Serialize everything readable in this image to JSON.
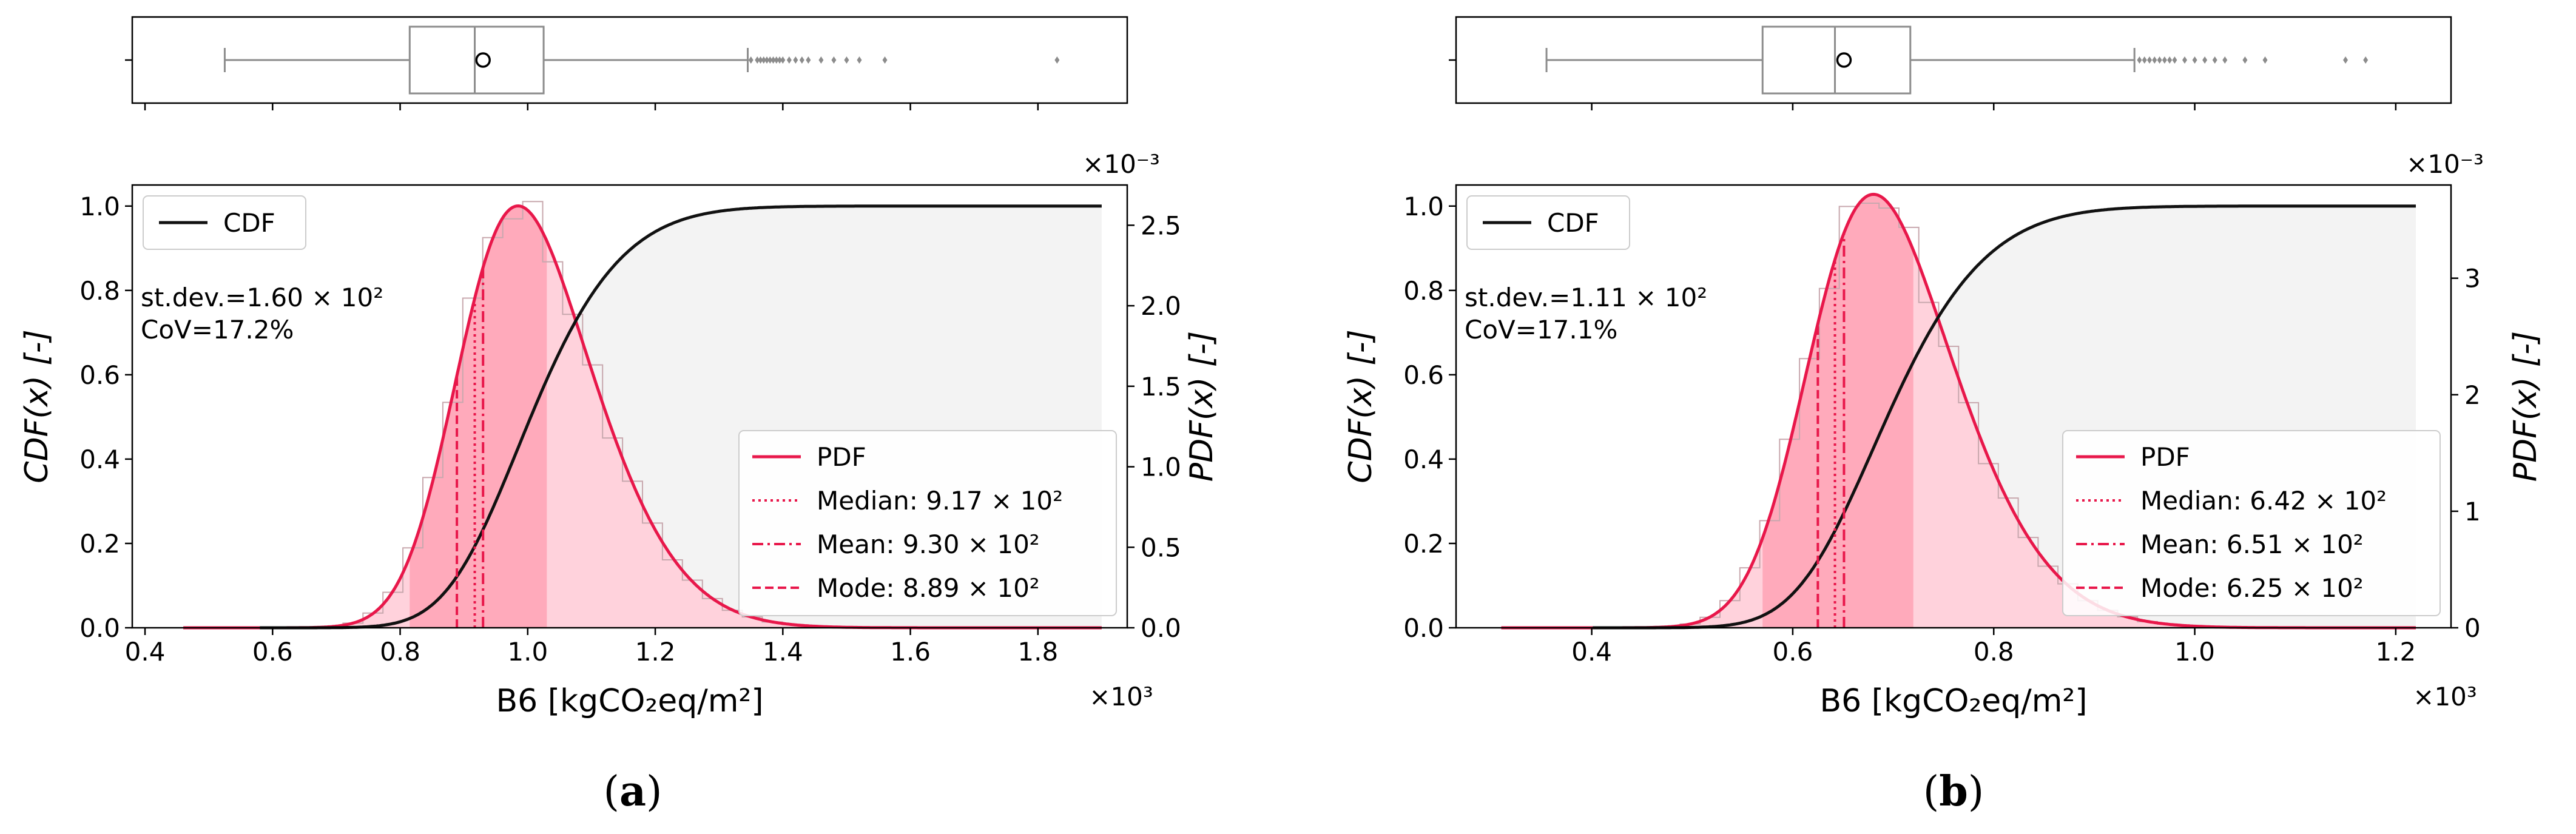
{
  "figure": {
    "panels": [
      {
        "caption_letter": "a",
        "chart_data": {
          "type": "histogram-kde-cdf-boxplot",
          "xlabel": "B6 [kgCO₂eq/m²]",
          "x_multiplier": "×10³",
          "x_range": [
            0.38,
            1.94
          ],
          "x_ticks": [
            0.4,
            0.6,
            0.8,
            1.0,
            1.2,
            1.4,
            1.6,
            1.8
          ],
          "x_tick_labels": [
            "0.4",
            "0.6",
            "0.8",
            "1.0",
            "1.2",
            "1.4",
            "1.6",
            "1.8"
          ],
          "cdf_axis": {
            "label": "CDF(x) [-]",
            "range": [
              0,
              1.05
            ],
            "ticks": [
              0.0,
              0.2,
              0.4,
              0.6,
              0.8,
              1.0
            ],
            "tick_labels": [
              "0.0",
              "0.2",
              "0.4",
              "0.6",
              "0.8",
              "1.0"
            ]
          },
          "pdf_axis": {
            "label": "PDF(x) [-]",
            "multiplier": "×10⁻³",
            "range": [
              0,
              2.75
            ],
            "ticks": [
              0.0,
              0.5,
              1.0,
              1.5,
              2.0,
              2.5
            ],
            "tick_labels": [
              "0.0",
              "0.5",
              "1.0",
              "1.5",
              "2.0",
              "2.5"
            ]
          },
          "stats": {
            "line1": "st.dev.=1.60 × 10²",
            "line2": "CoV=17.2%"
          },
          "distribution": {
            "mu": 0.9,
            "sigma": 0.16,
            "skew": 2.0,
            "pdf_peak": 2.62,
            "x_min": 0.46,
            "x_max": 1.9
          },
          "cdf_curve": {
            "x_start": 0.58,
            "x_end": 1.9
          },
          "iqr": [
            0.815,
            1.03
          ],
          "median": 0.917,
          "mean": 0.93,
          "mode": 0.889,
          "boxplot": {
            "whisker_low": 0.525,
            "q1": 0.815,
            "median": 0.917,
            "q3": 1.025,
            "whisker_high": 1.345,
            "mean": 0.93,
            "outliers": [
              1.35,
              1.36,
              1.365,
              1.37,
              1.375,
              1.38,
              1.385,
              1.39,
              1.395,
              1.4,
              1.41,
              1.42,
              1.43,
              1.44,
              1.46,
              1.48,
              1.5,
              1.52,
              1.56,
              1.83
            ]
          },
          "legend": {
            "cdf": "CDF",
            "pdf": "PDF",
            "median": "Median: 9.17 × 10²",
            "mean": "Mean: 9.30 × 10²",
            "mode": "Mode: 8.89 × 10²"
          }
        }
      },
      {
        "caption_letter": "b",
        "chart_data": {
          "type": "histogram-kde-cdf-boxplot",
          "xlabel": "B6 [kgCO₂eq/m²]",
          "x_multiplier": "×10³",
          "x_range": [
            0.265,
            1.255
          ],
          "x_ticks": [
            0.4,
            0.6,
            0.8,
            1.0,
            1.2
          ],
          "x_tick_labels": [
            "0.4",
            "0.6",
            "0.8",
            "1.0",
            "1.2"
          ],
          "cdf_axis": {
            "label": "CDF(x) [-]",
            "range": [
              0,
              1.05
            ],
            "ticks": [
              0.0,
              0.2,
              0.4,
              0.6,
              0.8,
              1.0
            ],
            "tick_labels": [
              "0.0",
              "0.2",
              "0.4",
              "0.6",
              "0.8",
              "1.0"
            ]
          },
          "pdf_axis": {
            "label": "PDF(x) [-]",
            "multiplier": "×10⁻³",
            "range": [
              0,
              3.8
            ],
            "ticks": [
              0,
              1,
              2,
              3
            ],
            "tick_labels": [
              "0",
              "1",
              "2",
              "3"
            ]
          },
          "stats": {
            "line1": "st.dev.=1.11 × 10²",
            "line2": "CoV=17.1%"
          },
          "distribution": {
            "mu": 0.622,
            "sigma": 0.11,
            "skew": 2.0,
            "pdf_peak": 3.72,
            "x_min": 0.31,
            "x_max": 1.22
          },
          "cdf_curve": {
            "x_start": 0.4,
            "x_end": 1.22
          },
          "iqr": [
            0.57,
            0.72
          ],
          "median": 0.642,
          "mean": 0.651,
          "mode": 0.625,
          "boxplot": {
            "whisker_low": 0.355,
            "q1": 0.57,
            "median": 0.642,
            "q3": 0.717,
            "whisker_high": 0.94,
            "mean": 0.651,
            "outliers": [
              0.945,
              0.95,
              0.955,
              0.96,
              0.965,
              0.97,
              0.975,
              0.98,
              0.99,
              1.0,
              1.01,
              1.02,
              1.03,
              1.05,
              1.07,
              1.15,
              1.17
            ]
          },
          "legend": {
            "cdf": "CDF",
            "pdf": "PDF",
            "median": "Median: 6.42 × 10²",
            "mean": "Mean: 6.51 × 10²",
            "mode": "Mode: 6.25 × 10²"
          }
        }
      }
    ]
  },
  "colors": {
    "pdf_line": "#e8174a",
    "hist_fill": "#ffd2dc",
    "iqr_fill": "#ffaabb",
    "hist_edge": "#c8a8ae",
    "cdf_shade": "#f3f3f3",
    "box_gray": "#8c8c8c"
  }
}
